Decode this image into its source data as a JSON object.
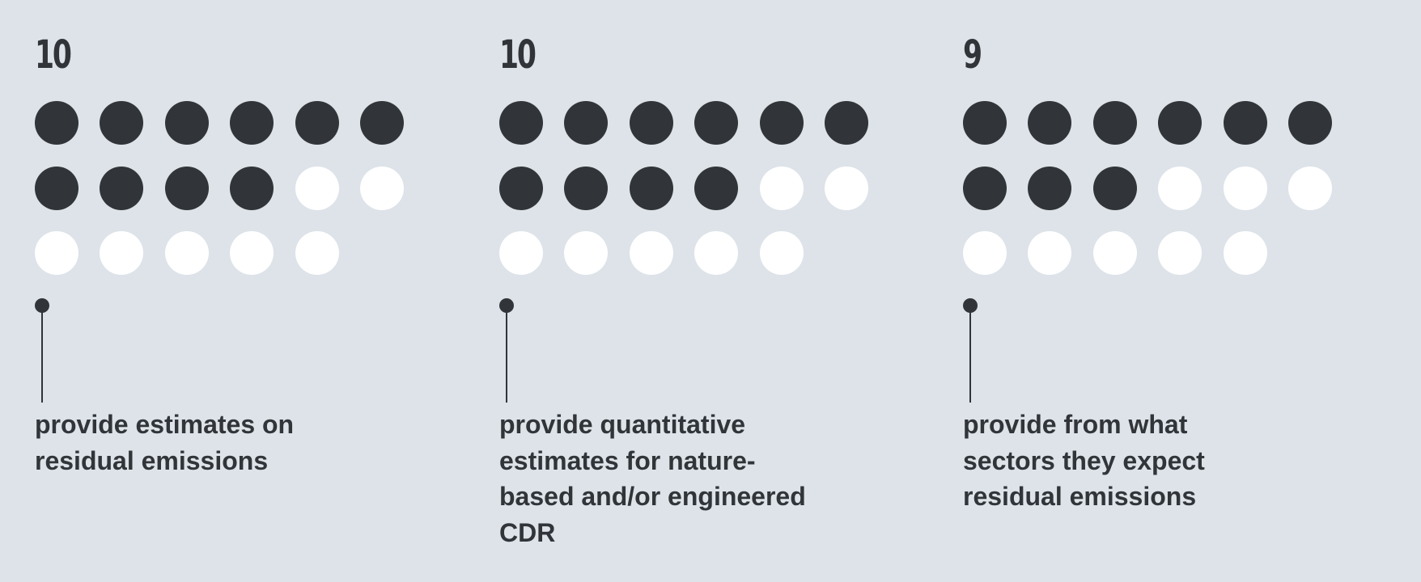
{
  "chart_data": {
    "type": "dot-matrix",
    "dots_per_panel": 17,
    "dots_per_row": 6,
    "colors": {
      "filled": "#313539",
      "empty": "#ffffff",
      "background": "#dde3e9"
    },
    "panels": [
      {
        "count": "10",
        "value": 10,
        "label": "provide estimates on residual emissions"
      },
      {
        "count": "10",
        "value": 10,
        "label": "provide quantitative estimates for nature-based and/or engineered CDR"
      },
      {
        "count": "9",
        "value": 9,
        "label": "provide from what sectors they expect residual emissions"
      }
    ]
  }
}
